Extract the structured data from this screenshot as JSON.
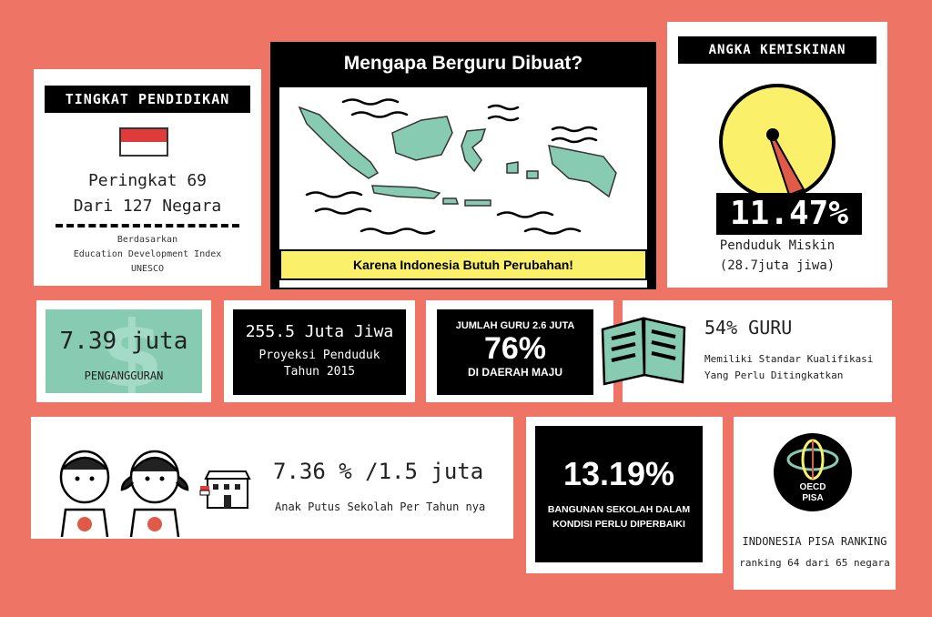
{
  "education": {
    "title": "TINGKAT PENDIDIKAN",
    "rank": "Peringkat 69",
    "of": "Dari 127 Negara",
    "source_1": "Berdasarkan",
    "source_2": "Education Development Index",
    "source_3": "UNESCO"
  },
  "map_card": {
    "title": "Mengapa Berguru Dibuat?",
    "caption": "Karena Indonesia Butuh Perubahan!"
  },
  "poverty": {
    "title": "ANGKA KEMISKINAN",
    "percent": "11.47%",
    "label": "Penduduk Miskin",
    "count": "(28.7juta jiwa)"
  },
  "unemployment": {
    "value": "7.39 juta",
    "label": "PENGANGGURAN"
  },
  "population": {
    "value": "255.5 Juta Jiwa",
    "label_1": "Proyeksi Penduduk",
    "label_2": "Tahun 2015"
  },
  "teachers": {
    "header": "JUMLAH GURU 2.6 JUTA",
    "percent": "76%",
    "footer": "DI DAERAH MAJU"
  },
  "standard": {
    "title": "54% GURU",
    "line_1": "Memiliki Standar Kualifikasi",
    "line_2": "Yang Perlu Ditingkatkan"
  },
  "dropout": {
    "value": "7.36 % /1.5 juta",
    "label": "Anak Putus Sekolah Per Tahun nya"
  },
  "buildings": {
    "percent": "13.19%",
    "line_1": "BANGUNAN SEKOLAH DALAM",
    "line_2": "KONDISI PERLU DIPERBAIKI"
  },
  "pisa": {
    "logo_1": "OECD",
    "logo_2": "PISA",
    "title": "INDONESIA PISA RANKING",
    "rank": "ranking 64 dari 65 negara"
  },
  "colors": {
    "background": "#ee7565",
    "yellow": "#fbf06a",
    "green": "#86cbb2",
    "red": "#e03b3b"
  }
}
